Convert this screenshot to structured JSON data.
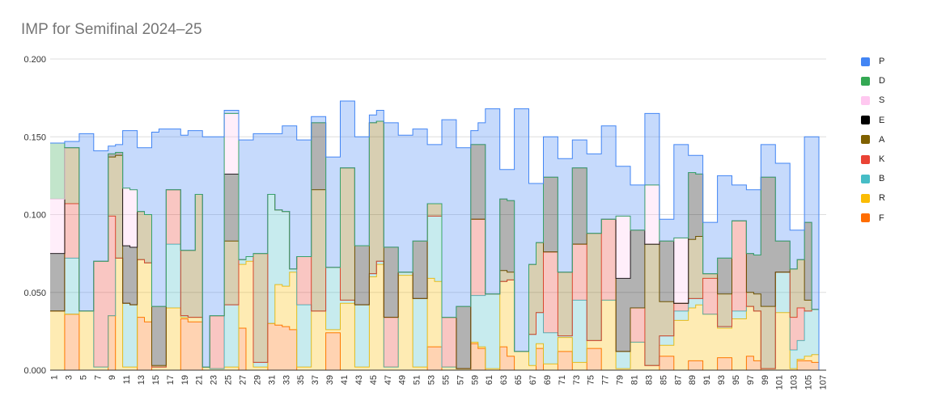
{
  "chart_data": {
    "type": "area",
    "title": "IMP for Semifinal 2024–25",
    "xlabel": "",
    "ylabel": "",
    "x": [
      1,
      2,
      3,
      4,
      5,
      6,
      7,
      8,
      9,
      10,
      11,
      12,
      13,
      14,
      15,
      16,
      17,
      18,
      19,
      20,
      21,
      22,
      23,
      24,
      25,
      26,
      27,
      28,
      29,
      30,
      31,
      32,
      33,
      34,
      35,
      36,
      37,
      38,
      39,
      40,
      41,
      42,
      43,
      44,
      45,
      46,
      47,
      48,
      49,
      50,
      51,
      52,
      53,
      54,
      55,
      56,
      57,
      58,
      59,
      60,
      61,
      62,
      63,
      64,
      65,
      66,
      67,
      68,
      69,
      70,
      71,
      72,
      73,
      74,
      75,
      76,
      77,
      78,
      79,
      80,
      81,
      82,
      83,
      84,
      85,
      86,
      87,
      88,
      89,
      90,
      91,
      92,
      93,
      94,
      95,
      96,
      97,
      98,
      99,
      100,
      101,
      102,
      103,
      104,
      105,
      106,
      107
    ],
    "xticks": [
      "1",
      "3",
      "5",
      "7",
      "9",
      "11",
      "13",
      "15",
      "17",
      "19",
      "21",
      "23",
      "25",
      "27",
      "29",
      "31",
      "33",
      "35",
      "37",
      "39",
      "41",
      "43",
      "45",
      "47",
      "49",
      "51",
      "53",
      "55",
      "57",
      "59",
      "61",
      "63",
      "65",
      "67",
      "69",
      "71",
      "73",
      "75",
      "77",
      "79",
      "81",
      "83",
      "85",
      "87",
      "89",
      "91",
      "93",
      "95",
      "97",
      "99",
      "101",
      "103",
      "105",
      "107"
    ],
    "ylim": [
      0,
      0.2
    ],
    "yticks": [
      "0.000",
      "0.050",
      "0.100",
      "0.150",
      "0.200"
    ],
    "grid": true,
    "legend": "right",
    "colors": {
      "P": "#4285f4",
      "D": "#34a853",
      "S": "#ffc8f0",
      "E": "#000000",
      "A": "#7f6000",
      "K": "#ea4335",
      "B": "#46bdc6",
      "R": "#fbbc04",
      "F": "#ff6d01"
    },
    "series": [
      {
        "name": "F",
        "values": [
          0.0,
          0.0,
          0.036,
          0.036,
          0.0,
          0.0,
          0.0,
          0.0,
          0.035,
          0.0,
          0.0,
          0.0,
          0.034,
          0.031,
          0.0,
          0.0,
          0.0,
          0.0,
          0.033,
          0.031,
          0.031,
          0.0,
          0.0,
          0.0,
          0.0,
          0.0,
          0.027,
          0.0,
          0.0,
          0.0,
          0.03,
          0.029,
          0.028,
          0.026,
          0.0,
          0.0,
          0.0,
          0.0,
          0.024,
          0.024,
          0.0,
          0.0,
          0.0,
          0.0,
          0.0,
          0.0,
          0.0,
          0.0,
          0.0,
          0.0,
          0.0,
          0.0,
          0.015,
          0.015,
          0.0,
          0.0,
          0.0,
          0.0,
          0.017,
          0.014,
          0.0,
          0.0,
          0.015,
          0.009,
          0.0,
          0.0,
          0.0,
          0.014,
          0.0,
          0.0,
          0.012,
          0.012,
          0.0,
          0.0,
          0.014,
          0.014,
          0.0,
          0.0,
          0.0,
          0.0,
          0.0,
          0.0,
          0.0,
          0.0,
          0.009,
          0.009,
          0.0,
          0.0,
          0.006,
          0.006,
          0.0,
          0.0,
          0.008,
          0.008,
          0.0,
          0.0,
          0.009,
          0.006,
          0.0,
          0.0,
          0.0,
          0.0,
          0.0,
          0.006,
          0.006,
          0.005,
          0.0
        ]
      },
      {
        "name": "R",
        "values": [
          0.038,
          0.038,
          0.0,
          0.0,
          0.038,
          0.038,
          0.002,
          0.002,
          0.0,
          0.072,
          0.002,
          0.002,
          0.037,
          0.038,
          0.002,
          0.002,
          0.04,
          0.04,
          0.001,
          0.003,
          0.003,
          0.002,
          0.001,
          0.001,
          0.002,
          0.002,
          0.041,
          0.07,
          0.002,
          0.002,
          0.0,
          0.026,
          0.026,
          0.037,
          0.002,
          0.002,
          0.038,
          0.038,
          0.002,
          0.002,
          0.043,
          0.043,
          0.002,
          0.002,
          0.06,
          0.068,
          0.002,
          0.002,
          0.061,
          0.061,
          0.002,
          0.002,
          0.044,
          0.042,
          0.002,
          0.002,
          0.001,
          0.001,
          0.001,
          0.001,
          0.001,
          0.001,
          0.042,
          0.049,
          0.012,
          0.012,
          0.003,
          0.003,
          0.004,
          0.004,
          0.009,
          0.009,
          0.005,
          0.005,
          0.005,
          0.005,
          0.045,
          0.045,
          0.001,
          0.001,
          0.018,
          0.018,
          0.003,
          0.003,
          0.007,
          0.007,
          0.032,
          0.032,
          0.034,
          0.036,
          0.036,
          0.036,
          0.019,
          0.019,
          0.033,
          0.033,
          0.032,
          0.032,
          0.001,
          0.001,
          0.037,
          0.037,
          0.001,
          0.001,
          0.003,
          0.005,
          0.0
        ]
      },
      {
        "name": "B",
        "values": [
          0.0,
          0.0,
          0.036,
          0.036,
          0.0,
          0.0,
          0.0,
          0.0,
          0.0,
          0.0,
          0.041,
          0.04,
          0.0,
          0.0,
          0.0,
          0.0,
          0.041,
          0.041,
          0.001,
          0.0,
          0.0,
          0.0,
          0.0,
          0.0,
          0.04,
          0.04,
          0.003,
          0.003,
          0.003,
          0.003,
          0.083,
          0.048,
          0.048,
          0.002,
          0.04,
          0.04,
          0.0,
          0.0,
          0.04,
          0.04,
          0.002,
          0.002,
          0.04,
          0.04,
          0.002,
          0.002,
          0.0,
          0.0,
          0.002,
          0.002,
          0.044,
          0.044,
          0.04,
          0.042,
          0.0,
          0.0,
          0.0,
          0.0,
          0.03,
          0.033,
          0.048,
          0.048,
          0.0,
          0.0,
          0.0,
          0.0,
          0.02,
          0.02,
          0.02,
          0.02,
          0.001,
          0.001,
          0.04,
          0.04,
          0.0,
          0.0,
          0.0,
          0.0,
          0.011,
          0.011,
          0.0,
          0.0,
          0.0,
          0.0,
          0.006,
          0.006,
          0.006,
          0.006,
          0.006,
          0.004,
          0.0,
          0.0,
          0.001,
          0.001,
          0.005,
          0.005,
          0.0,
          0.0,
          0.0,
          0.0,
          0.026,
          0.026,
          0.012,
          0.012,
          0.029,
          0.029,
          0.0
        ]
      },
      {
        "name": "K",
        "values": [
          0.0,
          0.0,
          0.035,
          0.035,
          0.0,
          0.0,
          0.068,
          0.068,
          0.064,
          0.0,
          0.0,
          0.0,
          0.0,
          0.0,
          0.0,
          0.0,
          0.035,
          0.035,
          0.0,
          0.0,
          0.0,
          0.0,
          0.034,
          0.034,
          0.0,
          0.0,
          0.0,
          0.0,
          0.0,
          0.0,
          0.0,
          0.0,
          0.0,
          0.0,
          0.031,
          0.031,
          0.0,
          0.0,
          0.0,
          0.0,
          0.0,
          0.0,
          0.0,
          0.0,
          0.0,
          0.0,
          0.032,
          0.032,
          0.0,
          0.0,
          0.0,
          0.0,
          0.0,
          0.0,
          0.032,
          0.032,
          0.0,
          0.0,
          0.049,
          0.049,
          0.0,
          0.0,
          0.0,
          0.0,
          0.0,
          0.0,
          0.0,
          0.0,
          0.052,
          0.052,
          0.0,
          0.0,
          0.036,
          0.036,
          0.0,
          0.0,
          0.052,
          0.052,
          0.0,
          0.0,
          0.022,
          0.022,
          0.0,
          0.0,
          0.0,
          0.0,
          0.005,
          0.005,
          0.0,
          0.0,
          0.023,
          0.023,
          0.0,
          0.0,
          0.058,
          0.058,
          0.0,
          0.0,
          0.0,
          0.0,
          0.0,
          0.0,
          0.021,
          0.021,
          0.0,
          0.0,
          0.0
        ]
      },
      {
        "name": "A",
        "values": [
          0.0,
          0.0,
          0.036,
          0.036,
          0.0,
          0.0,
          0.0,
          0.0,
          0.038,
          0.066,
          0.0,
          0.0,
          0.031,
          0.031,
          0.001,
          0.001,
          0.0,
          0.0,
          0.042,
          0.043,
          0.079,
          0.0,
          0.0,
          0.0,
          0.041,
          0.041,
          0.0,
          0.0,
          0.07,
          0.07,
          0.0,
          0.0,
          0.0,
          0.0,
          0.0,
          0.0,
          0.078,
          0.078,
          0.0,
          0.0,
          0.085,
          0.085,
          0.0,
          0.0,
          0.097,
          0.09,
          0.0,
          0.0,
          0.0,
          0.0,
          0.0,
          0.0,
          0.008,
          0.008,
          0.0,
          0.0,
          0.0,
          0.0,
          0.0,
          0.0,
          0.0,
          0.0,
          0.007,
          0.005,
          0.0,
          0.0,
          0.045,
          0.045,
          0.0,
          0.0,
          0.041,
          0.041,
          0.0,
          0.0,
          0.069,
          0.069,
          0.0,
          0.0,
          0.0,
          0.0,
          0.0,
          0.0,
          0.078,
          0.078,
          0.022,
          0.022,
          0.0,
          0.0,
          0.038,
          0.04,
          0.003,
          0.003,
          0.021,
          0.021,
          0.0,
          0.0,
          0.009,
          0.011,
          0.04,
          0.04,
          0.0,
          0.0,
          0.031,
          0.031,
          0.007,
          0.0,
          0.0
        ]
      },
      {
        "name": "E",
        "values": [
          0.037,
          0.037,
          0.0,
          0.0,
          0.0,
          0.0,
          0.0,
          0.0,
          0.002,
          0.002,
          0.037,
          0.037,
          0.0,
          0.0,
          0.038,
          0.038,
          0.0,
          0.0,
          0.0,
          0.0,
          0.0,
          0.0,
          0.0,
          0.0,
          0.043,
          0.043,
          0.0,
          0.0,
          0.0,
          0.0,
          0.0,
          0.0,
          0.0,
          0.0,
          0.0,
          0.0,
          0.043,
          0.043,
          0.0,
          0.0,
          0.0,
          0.0,
          0.038,
          0.038,
          0.0,
          0.0,
          0.045,
          0.045,
          0.0,
          0.0,
          0.037,
          0.037,
          0.0,
          0.0,
          0.0,
          0.0,
          0.04,
          0.04,
          0.048,
          0.048,
          0.0,
          0.0,
          0.046,
          0.046,
          0.0,
          0.0,
          0.0,
          0.0,
          0.048,
          0.048,
          0.0,
          0.0,
          0.049,
          0.049,
          0.0,
          0.0,
          0.0,
          0.0,
          0.047,
          0.047,
          0.05,
          0.05,
          0.0,
          0.0,
          0.039,
          0.039,
          0.0,
          0.0,
          0.043,
          0.04,
          0.0,
          0.0,
          0.023,
          0.023,
          0.0,
          0.0,
          0.025,
          0.025,
          0.083,
          0.083,
          0.02,
          0.02,
          0.0,
          0.0,
          0.05,
          0.0,
          0.0
        ]
      },
      {
        "name": "S",
        "values": [
          0.035,
          0.035,
          0.0,
          0.0,
          0.0,
          0.0,
          0.0,
          0.0,
          0.0,
          0.0,
          0.037,
          0.037,
          0.0,
          0.0,
          0.0,
          0.0,
          0.0,
          0.0,
          0.0,
          0.0,
          0.0,
          0.0,
          0.0,
          0.0,
          0.039,
          0.039,
          0.0,
          0.0,
          0.0,
          0.0,
          0.0,
          0.0,
          0.0,
          0.0,
          0.0,
          0.0,
          0.0,
          0.0,
          0.0,
          0.0,
          0.0,
          0.0,
          0.0,
          0.0,
          0.0,
          0.0,
          0.0,
          0.0,
          0.0,
          0.0,
          0.0,
          0.0,
          0.0,
          0.0,
          0.0,
          0.0,
          0.0,
          0.0,
          0.0,
          0.0,
          0.0,
          0.0,
          0.0,
          0.0,
          0.0,
          0.0,
          0.0,
          0.0,
          0.0,
          0.0,
          0.0,
          0.0,
          0.0,
          0.0,
          0.0,
          0.0,
          0.0,
          0.0,
          0.04,
          0.04,
          0.0,
          0.0,
          0.038,
          0.038,
          0.0,
          0.0,
          0.042,
          0.042,
          0.0,
          0.0,
          0.0,
          0.0,
          0.0,
          0.0,
          0.0,
          0.0,
          0.0,
          0.0,
          0.0,
          0.0,
          0.0,
          0.0,
          0.0,
          0.0,
          0.0,
          0.0,
          0.0
        ]
      },
      {
        "name": "D",
        "values": [
          0.036,
          0.036,
          0.0,
          0.0,
          0.0,
          0.0,
          0.0,
          0.0,
          0.0,
          0.0,
          0.0,
          0.0,
          0.0,
          0.0,
          0.0,
          0.0,
          0.0,
          0.0,
          0.0,
          0.0,
          0.0,
          0.0,
          0.0,
          0.0,
          0.0,
          0.0,
          0.0,
          0.0,
          0.0,
          0.0,
          0.0,
          0.0,
          0.0,
          0.0,
          0.0,
          0.0,
          0.0,
          0.0,
          0.0,
          0.0,
          0.0,
          0.0,
          0.0,
          0.0,
          0.0,
          0.0,
          0.0,
          0.0,
          0.0,
          0.0,
          0.0,
          0.0,
          0.0,
          0.0,
          0.0,
          0.0,
          0.0,
          0.0,
          0.0,
          0.0,
          0.0,
          0.0,
          0.0,
          0.0,
          0.0,
          0.0,
          0.0,
          0.0,
          0.0,
          0.0,
          0.0,
          0.0,
          0.0,
          0.0,
          0.0,
          0.0,
          0.0,
          0.0,
          0.0,
          0.0,
          0.0,
          0.0,
          0.0,
          0.0,
          0.0,
          0.0,
          0.0,
          0.0,
          0.0,
          0.0,
          0.0,
          0.0,
          0.0,
          0.0,
          0.0,
          0.0,
          0.0,
          0.0,
          0.0,
          0.0,
          0.0,
          0.0,
          0.0,
          0.0,
          0.0,
          0.0,
          0.0
        ]
      },
      {
        "name": "P",
        "values": [
          0.0,
          0.0,
          0.0,
          0.0,
          0.0,
          0.0,
          0.0,
          0.0,
          0.0,
          0.0,
          0.0,
          0.0,
          0.0,
          0.0,
          0.0,
          0.0,
          0.0,
          0.0,
          0.0,
          0.0,
          0.0,
          0.0,
          0.0,
          0.0,
          0.0,
          0.0,
          0.0,
          0.0,
          0.0,
          0.0,
          0.0,
          0.0,
          0.0,
          0.0,
          0.0,
          0.0,
          0.0,
          0.0,
          0.0,
          0.0,
          0.0,
          0.0,
          0.0,
          0.0,
          0.0,
          0.0,
          0.0,
          0.0,
          0.0,
          0.0,
          0.0,
          0.0,
          0.0,
          0.0,
          0.0,
          0.0,
          0.0,
          0.0,
          0.0,
          0.0,
          0.0,
          0.0,
          0.0,
          0.0,
          0.0,
          0.0,
          0.0,
          0.0,
          0.0,
          0.0,
          0.0,
          0.0,
          0.0,
          0.0,
          0.0,
          0.0,
          0.0,
          0.0,
          0.0,
          0.0,
          0.0,
          0.0,
          0.0,
          0.0,
          0.0,
          0.0,
          0.0,
          0.0,
          0.0,
          0.0,
          0.0,
          0.0,
          0.0,
          0.0,
          0.0,
          0.0,
          0.0,
          0.0,
          0.0,
          0.0,
          0.0,
          0.0,
          0.0,
          0.0,
          0.0,
          0.0,
          0.0
        ]
      }
    ],
    "totals": [
      0.146,
      0.146,
      0.147,
      0.147,
      0.152,
      0.152,
      0.141,
      0.141,
      0.144,
      0.145,
      0.154,
      0.154,
      0.143,
      0.143,
      0.153,
      0.155,
      0.155,
      0.155,
      0.151,
      0.154,
      0.154,
      0.15,
      0.15,
      0.15,
      0.167,
      0.167,
      0.148,
      0.148,
      0.152,
      0.152,
      0.152,
      0.152,
      0.157,
      0.157,
      0.148,
      0.148,
      0.163,
      0.163,
      0.137,
      0.137,
      0.173,
      0.173,
      0.15,
      0.15,
      0.164,
      0.167,
      0.159,
      0.159,
      0.151,
      0.151,
      0.155,
      0.155,
      0.145,
      0.145,
      0.161,
      0.161,
      0.143,
      0.143,
      0.154,
      0.159,
      0.168,
      0.168,
      0.129,
      0.129,
      0.168,
      0.168,
      0.12,
      0.12,
      0.15,
      0.15,
      0.136,
      0.136,
      0.148,
      0.148,
      0.139,
      0.139,
      0.157,
      0.157,
      0.131,
      0.131,
      0.119,
      0.119,
      0.165,
      0.165,
      0.097,
      0.097,
      0.145,
      0.145,
      0.138,
      0.138,
      0.095,
      0.095,
      0.125,
      0.125,
      0.119,
      0.119,
      0.116,
      0.116,
      0.145,
      0.145,
      0.133,
      0.133,
      0.09,
      0.09,
      0.15,
      0.15,
      0.0
    ]
  },
  "legend_items": [
    {
      "label": "P",
      "color": "#4285f4"
    },
    {
      "label": "D",
      "color": "#34a853"
    },
    {
      "label": "S",
      "color": "#ffc8f0"
    },
    {
      "label": "E",
      "color": "#000000"
    },
    {
      "label": "A",
      "color": "#7f6000"
    },
    {
      "label": "K",
      "color": "#ea4335"
    },
    {
      "label": "B",
      "color": "#46bdc6"
    },
    {
      "label": "R",
      "color": "#fbbc04"
    },
    {
      "label": "F",
      "color": "#ff6d01"
    }
  ]
}
